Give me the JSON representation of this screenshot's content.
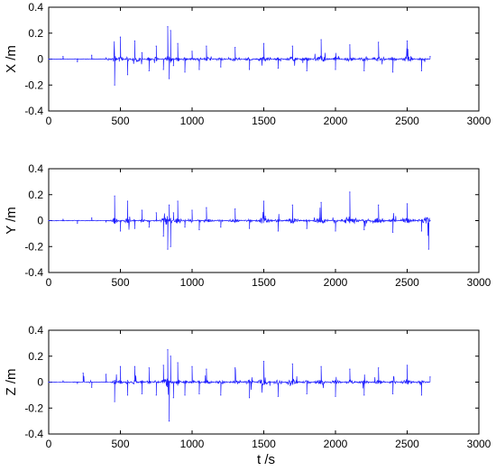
{
  "colors": {
    "line": "#1f1fff",
    "axis": "#000000",
    "background": "#ffffff"
  },
  "xlabel": "t /s",
  "chart_data": [
    {
      "type": "line",
      "title": "",
      "xlabel": "",
      "ylabel": "X /m",
      "xlim": [
        0,
        3000
      ],
      "ylim": [
        -0.4,
        0.4
      ],
      "grid": false,
      "x_ticks": [
        "0",
        "500",
        "1000",
        "1500",
        "2000",
        "2500",
        "3000"
      ],
      "y_ticks": [
        "-0.4",
        "-0.2",
        "0",
        "0.2",
        "0.4"
      ],
      "x": [
        0,
        100,
        200,
        300,
        400,
        460,
        500,
        550,
        600,
        650,
        700,
        750,
        800,
        830,
        840,
        850,
        870,
        900,
        950,
        1000,
        1050,
        1100,
        1200,
        1300,
        1400,
        1500,
        1600,
        1700,
        1800,
        1900,
        2000,
        2100,
        2200,
        2300,
        2400,
        2500,
        2600,
        2660
      ],
      "series": [
        {
          "values": [
            0.0,
            0.02,
            -0.02,
            0.03,
            0.01,
            -0.2,
            0.17,
            -0.12,
            0.14,
            0.05,
            -0.09,
            0.1,
            -0.08,
            0.25,
            -0.15,
            0.22,
            -0.05,
            0.12,
            -0.1,
            0.06,
            -0.08,
            0.1,
            -0.06,
            0.09,
            -0.08,
            0.12,
            -0.07,
            0.1,
            -0.09,
            0.15,
            -0.08,
            0.11,
            -0.09,
            0.13,
            -0.1,
            0.14,
            -0.09,
            0.02
          ]
        }
      ]
    },
    {
      "type": "line",
      "title": "",
      "xlabel": "",
      "ylabel": "Y /m",
      "xlim": [
        0,
        3000
      ],
      "ylim": [
        -0.4,
        0.4
      ],
      "grid": false,
      "x_ticks": [
        "0",
        "500",
        "1000",
        "1500",
        "2000",
        "2500",
        "3000"
      ],
      "y_ticks": [
        "-0.4",
        "-0.2",
        "0",
        "0.2",
        "0.4"
      ],
      "x": [
        0,
        100,
        200,
        300,
        400,
        460,
        500,
        550,
        600,
        650,
        700,
        750,
        800,
        830,
        840,
        850,
        870,
        900,
        950,
        1000,
        1050,
        1100,
        1200,
        1300,
        1400,
        1500,
        1600,
        1700,
        1800,
        1900,
        2000,
        2100,
        2200,
        2300,
        2400,
        2500,
        2600,
        2650,
        2660
      ],
      "series": [
        {
          "values": [
            0.0,
            0.01,
            -0.02,
            0.02,
            -0.01,
            0.19,
            -0.08,
            0.15,
            -0.06,
            0.08,
            -0.05,
            0.06,
            -0.12,
            -0.22,
            0.12,
            -0.2,
            0.06,
            0.15,
            -0.05,
            0.08,
            -0.07,
            0.1,
            -0.05,
            0.09,
            -0.06,
            0.15,
            -0.08,
            0.12,
            -0.06,
            0.14,
            -0.08,
            0.22,
            -0.07,
            0.12,
            -0.09,
            0.13,
            -0.08,
            -0.22,
            0.0
          ]
        }
      ]
    },
    {
      "type": "line",
      "title": "",
      "xlabel": "t /s",
      "ylabel": "Z /m",
      "xlim": [
        0,
        3000
      ],
      "ylim": [
        -0.4,
        0.4
      ],
      "grid": false,
      "x_ticks": [
        "0",
        "500",
        "1000",
        "1500",
        "2000",
        "2500",
        "3000"
      ],
      "y_ticks": [
        "-0.4",
        "-0.2",
        "0",
        "0.2",
        "0.4"
      ],
      "x": [
        0,
        100,
        200,
        240,
        300,
        400,
        460,
        500,
        550,
        600,
        650,
        700,
        750,
        800,
        830,
        840,
        850,
        870,
        900,
        950,
        1000,
        1050,
        1100,
        1200,
        1300,
        1400,
        1500,
        1600,
        1700,
        1800,
        1900,
        2000,
        2100,
        2200,
        2300,
        2400,
        2500,
        2600,
        2660
      ],
      "series": [
        {
          "values": [
            0.0,
            0.01,
            -0.01,
            0.07,
            -0.04,
            0.06,
            -0.15,
            0.12,
            -0.1,
            0.12,
            -0.09,
            0.11,
            -0.1,
            0.13,
            0.25,
            -0.3,
            0.2,
            -0.12,
            0.15,
            -0.1,
            0.12,
            -0.09,
            0.1,
            -0.1,
            0.11,
            -0.12,
            0.16,
            -0.11,
            0.14,
            -0.09,
            0.12,
            -0.11,
            0.1,
            -0.1,
            0.11,
            -0.09,
            0.13,
            -0.1,
            0.04
          ]
        }
      ]
    }
  ]
}
